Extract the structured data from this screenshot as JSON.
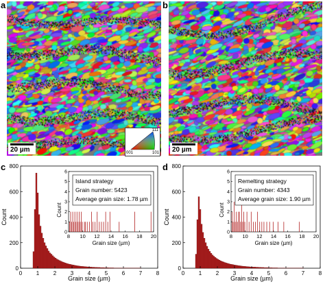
{
  "panels": {
    "a": "a",
    "b": "b",
    "c": "c",
    "d": "d"
  },
  "scale_bar": "20 µm",
  "ipf_key": {
    "top": "111",
    "left": "001",
    "right": "101"
  },
  "colors": {
    "bar": "#b22222",
    "bar_edge": "#5a0000"
  },
  "chart_data": [
    {
      "type": "bar",
      "panel": "c",
      "xlabel": "Grain size (µm)",
      "ylabel": "Count",
      "xlim": [
        0,
        8
      ],
      "ylim": [
        0,
        800
      ],
      "xticks": [
        0,
        1,
        2,
        3,
        4,
        5,
        6,
        7,
        8
      ],
      "yticks": [
        0,
        200,
        400,
        600,
        800
      ],
      "bin_width": 0.08,
      "x": [
        0.72,
        0.8,
        0.88,
        0.96,
        1.04,
        1.12,
        1.2,
        1.28,
        1.36,
        1.44,
        1.52,
        1.6,
        1.68,
        1.76,
        1.84,
        1.92,
        2.0,
        2.08,
        2.16,
        2.24,
        2.32,
        2.4,
        2.48,
        2.56,
        2.64,
        2.72,
        2.8,
        2.88,
        2.96,
        3.04,
        3.12,
        3.2,
        3.28,
        3.36,
        3.44,
        3.52,
        3.6,
        3.68,
        3.76,
        3.84,
        3.92,
        4.0,
        4.08,
        4.16,
        4.24,
        4.32,
        4.4,
        4.48,
        4.56,
        4.64,
        4.72,
        4.8,
        4.88,
        4.96,
        5.04,
        5.12,
        5.2,
        5.28,
        5.36,
        5.44,
        5.52,
        5.6,
        5.68,
        5.76,
        5.84,
        5.92,
        6.0,
        6.08,
        6.16,
        6.24,
        6.32,
        6.4,
        6.48,
        6.56,
        6.64,
        6.72,
        6.8,
        6.88,
        6.96
      ],
      "values": [
        130,
        460,
        745,
        590,
        420,
        330,
        275,
        235,
        200,
        175,
        155,
        135,
        120,
        110,
        98,
        88,
        80,
        72,
        66,
        60,
        55,
        50,
        46,
        42,
        38,
        35,
        32,
        30,
        27,
        25,
        23,
        21,
        19,
        18,
        16,
        15,
        14,
        13,
        12,
        11,
        10,
        9,
        9,
        8,
        8,
        7,
        7,
        6,
        6,
        5,
        5,
        5,
        4,
        4,
        4,
        3,
        3,
        3,
        3,
        2,
        2,
        2,
        2,
        2,
        2,
        1,
        1,
        1,
        1,
        1,
        1,
        1,
        1,
        1,
        1,
        1,
        1,
        1,
        1
      ],
      "inset": {
        "legend_title": "Island strategy",
        "grain_number_text": "Grain number: 5423",
        "average_text": "Average grain size: 1.78 µm",
        "xlabel": "Grain size (µm)",
        "ylabel": "Count",
        "xlim": [
          8,
          20
        ],
        "ylim": [
          0,
          6
        ],
        "xticks": [
          8,
          10,
          12,
          14,
          16,
          18,
          20
        ],
        "yticks": [
          0,
          1,
          2,
          3,
          4,
          5,
          6
        ],
        "bars": [
          [
            8.1,
            1
          ],
          [
            8.25,
            2
          ],
          [
            8.4,
            1
          ],
          [
            8.55,
            2
          ],
          [
            8.7,
            1
          ],
          [
            8.85,
            2
          ],
          [
            9.0,
            1
          ],
          [
            9.15,
            2
          ],
          [
            9.3,
            1
          ],
          [
            9.45,
            2
          ],
          [
            9.6,
            1
          ],
          [
            9.75,
            2
          ],
          [
            9.9,
            1
          ],
          [
            10.2,
            1
          ],
          [
            10.35,
            1
          ],
          [
            10.6,
            1
          ],
          [
            10.9,
            1
          ],
          [
            11.2,
            2
          ],
          [
            11.4,
            1
          ],
          [
            11.7,
            1
          ],
          [
            12.0,
            2
          ],
          [
            12.3,
            1
          ],
          [
            12.6,
            1
          ],
          [
            12.9,
            1
          ],
          [
            13.2,
            2
          ],
          [
            13.5,
            1
          ],
          [
            13.8,
            2
          ],
          [
            15.1,
            1
          ],
          [
            17.3,
            2
          ],
          [
            19.6,
            2
          ]
        ]
      }
    },
    {
      "type": "bar",
      "panel": "d",
      "xlabel": "Grain size (µm)",
      "ylabel": "Count",
      "xlim": [
        0,
        8
      ],
      "ylim": [
        0,
        800
      ],
      "xticks": [
        0,
        1,
        2,
        3,
        4,
        5,
        6,
        7,
        8
      ],
      "yticks": [
        0,
        200,
        400,
        600,
        800
      ],
      "bin_width": 0.08,
      "x": [
        0.72,
        0.8,
        0.88,
        0.96,
        1.04,
        1.12,
        1.2,
        1.28,
        1.36,
        1.44,
        1.52,
        1.6,
        1.68,
        1.76,
        1.84,
        1.92,
        2.0,
        2.08,
        2.16,
        2.24,
        2.32,
        2.4,
        2.48,
        2.56,
        2.64,
        2.72,
        2.8,
        2.88,
        2.96,
        3.04,
        3.12,
        3.2,
        3.28,
        3.36,
        3.44,
        3.52,
        3.6,
        3.68,
        3.76,
        3.84,
        3.92,
        4.0,
        4.08,
        4.16,
        4.24,
        4.32,
        4.4,
        4.48,
        4.56,
        4.64,
        4.72,
        4.8,
        4.88,
        4.96,
        5.04,
        5.12,
        5.2,
        5.28,
        5.36,
        5.44,
        5.52,
        5.6,
        5.68,
        5.76,
        5.84,
        5.92,
        6.0,
        6.08,
        6.16,
        6.24,
        6.32,
        6.4,
        6.48,
        6.56,
        6.64,
        6.72,
        6.8,
        6.88,
        6.96
      ],
      "values": [
        110,
        380,
        560,
        460,
        345,
        280,
        235,
        200,
        172,
        150,
        132,
        117,
        104,
        94,
        85,
        77,
        70,
        64,
        58,
        53,
        49,
        45,
        41,
        38,
        35,
        32,
        30,
        28,
        26,
        24,
        22,
        20,
        19,
        17,
        16,
        15,
        14,
        13,
        12,
        11,
        10,
        10,
        9,
        9,
        8,
        8,
        7,
        7,
        6,
        6,
        5,
        5,
        5,
        4,
        4,
        4,
        3,
        3,
        3,
        3,
        2,
        2,
        2,
        2,
        2,
        1,
        1,
        1,
        1,
        1,
        1,
        1,
        1,
        1,
        1,
        1,
        1,
        1,
        1
      ],
      "inset": {
        "legend_title": "Remelting strategy",
        "grain_number_text": "Grain number: 4343",
        "average_text": "Average grain size: 1.90 µm",
        "xlabel": "Grain size (µm)",
        "ylabel": "Count",
        "xlim": [
          8,
          20
        ],
        "ylim": [
          0,
          6
        ],
        "xticks": [
          8,
          10,
          12,
          14,
          16,
          18,
          20
        ],
        "yticks": [
          0,
          1,
          2,
          3,
          4,
          5,
          6
        ],
        "bars": [
          [
            8.1,
            2
          ],
          [
            8.25,
            1
          ],
          [
            8.4,
            3
          ],
          [
            8.55,
            1
          ],
          [
            8.7,
            2
          ],
          [
            8.85,
            1
          ],
          [
            9.0,
            2
          ],
          [
            9.15,
            2
          ],
          [
            9.3,
            1
          ],
          [
            9.45,
            3
          ],
          [
            9.6,
            1
          ],
          [
            9.75,
            2
          ],
          [
            9.9,
            1
          ],
          [
            10.2,
            2
          ],
          [
            10.5,
            1
          ],
          [
            10.8,
            2
          ],
          [
            11.1,
            1
          ],
          [
            11.4,
            1
          ],
          [
            11.7,
            2
          ],
          [
            12.0,
            1
          ],
          [
            12.3,
            1
          ],
          [
            12.6,
            1
          ],
          [
            13.0,
            1
          ],
          [
            13.4,
            1
          ],
          [
            13.9,
            1
          ],
          [
            14.6,
            1
          ],
          [
            15.4,
            1
          ],
          [
            17.6,
            1
          ]
        ]
      }
    }
  ]
}
